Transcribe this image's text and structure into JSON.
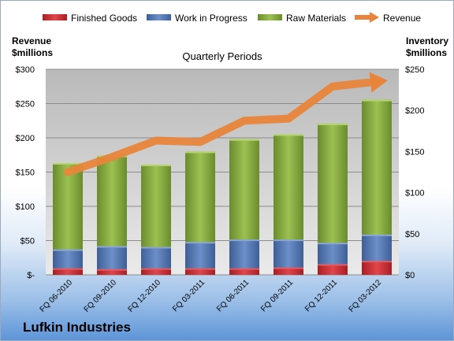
{
  "chart_data": {
    "type": "bar",
    "stacked": true,
    "title": "Quarterly Periods",
    "company": "Lufkin Industries",
    "categories": [
      "FQ 06-2010",
      "FQ 09-2010",
      "FQ 12-2010",
      "FQ 03-2011",
      "FQ 06-2011",
      "FQ 09-2011",
      "FQ 12-2011",
      "FQ 03-2012"
    ],
    "left_axis": {
      "label": [
        "Revenue",
        "$millions"
      ],
      "ylim": [
        0,
        300
      ],
      "ticks": [
        0,
        50,
        100,
        150,
        200,
        250,
        300
      ],
      "tick_labels": [
        "$-",
        "$50",
        "$100",
        "$150",
        "$200",
        "$250",
        "$300"
      ]
    },
    "right_axis": {
      "label": [
        "Inventory",
        "$millions"
      ],
      "ylim": [
        0,
        250
      ],
      "ticks": [
        0,
        50,
        100,
        150,
        200,
        250
      ],
      "tick_labels": [
        "$0",
        "$50",
        "$100",
        "$150",
        "$200",
        "$250"
      ]
    },
    "series": [
      {
        "name": "Finished Goods",
        "type": "bar",
        "axis": "right",
        "color": "#c0272d",
        "values": [
          8,
          7,
          8,
          8,
          8,
          9,
          13,
          17
        ]
      },
      {
        "name": "Work in Progress",
        "type": "bar",
        "axis": "right",
        "color": "#4f74b3",
        "values": [
          23,
          28,
          26,
          32,
          35,
          34,
          26,
          32
        ]
      },
      {
        "name": "Raw Materials",
        "type": "bar",
        "axis": "right",
        "color": "#7fa33a",
        "values": [
          105,
          110,
          100,
          110,
          122,
          128,
          145,
          164
        ]
      },
      {
        "name": "Revenue",
        "type": "line",
        "axis": "left",
        "color": "#e8853a",
        "values": [
          150,
          172,
          196,
          194,
          225,
          228,
          275,
          282
        ]
      }
    ],
    "legend_position": "top",
    "grid": true
  }
}
